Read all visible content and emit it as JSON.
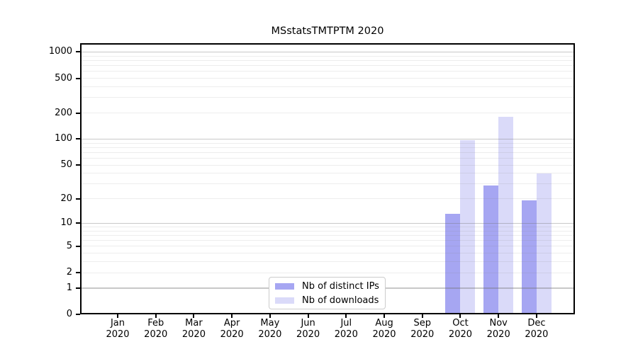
{
  "chart_data": {
    "type": "bar",
    "title": "MSstatsTMTPTM 2020",
    "categories": [
      "Jan",
      "Feb",
      "Mar",
      "Apr",
      "May",
      "Jun",
      "Jul",
      "Aug",
      "Sep",
      "Oct",
      "Nov",
      "Dec"
    ],
    "year": "2020",
    "series": [
      {
        "name": "Nb of distinct IPs",
        "color": "#a6a6f2",
        "values": [
          0,
          0,
          0,
          0,
          0,
          0,
          0,
          0,
          0,
          13,
          29,
          19
        ]
      },
      {
        "name": "Nb of downloads",
        "color": "#dadaf9",
        "values": [
          0,
          0,
          0,
          0,
          0,
          0,
          0,
          0,
          0,
          97,
          180,
          40
        ]
      }
    ],
    "xlabel": "",
    "ylabel": "",
    "yscale": "log1p",
    "ylim": [
      0,
      1250
    ],
    "yticks": [
      0,
      1,
      2,
      5,
      10,
      20,
      50,
      100,
      200,
      500,
      1000
    ],
    "major_gridlines": [
      1,
      10,
      100,
      1000
    ],
    "minor_gridlines": [
      2,
      3,
      4,
      5,
      6,
      7,
      8,
      9,
      20,
      30,
      40,
      50,
      60,
      70,
      80,
      90,
      200,
      300,
      400,
      500,
      600,
      700,
      800,
      900
    ],
    "grid": "on",
    "legend_position": "bottom-center"
  }
}
